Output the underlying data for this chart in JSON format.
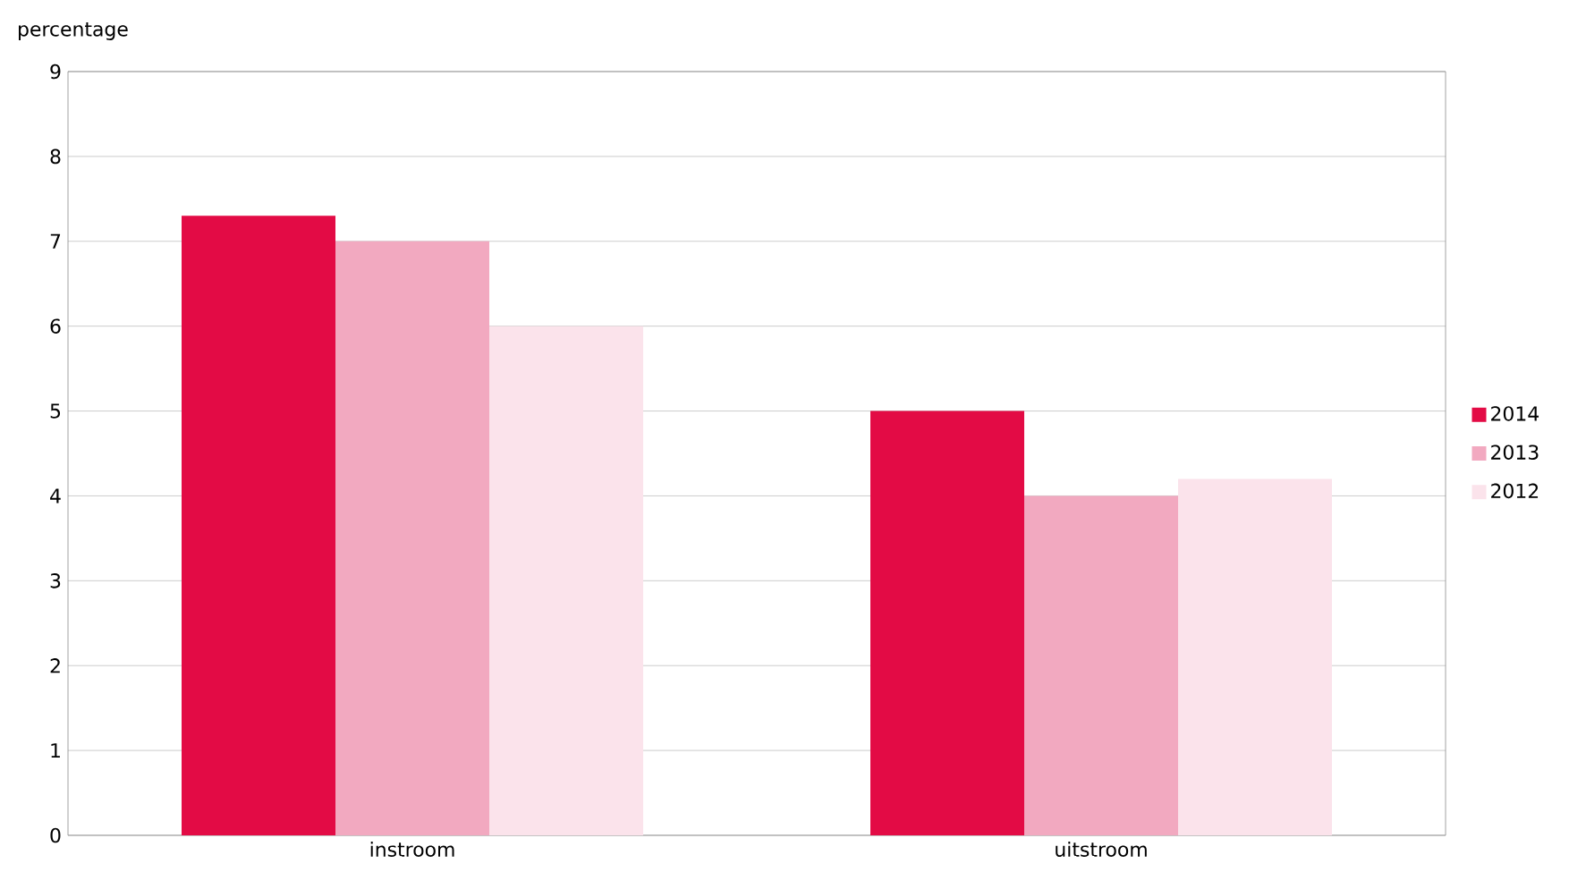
{
  "chart_data": {
    "type": "bar",
    "ylabel": "percentage",
    "categories": [
      "instroom",
      "uitstroom"
    ],
    "series": [
      {
        "name": "2014",
        "color": "#e30b45",
        "values": [
          7.3,
          5.0
        ]
      },
      {
        "name": "2013",
        "color": "#f2a9c0",
        "values": [
          7.0,
          4.0
        ]
      },
      {
        "name": "2012",
        "color": "#fbe3eb",
        "values": [
          6.0,
          4.2
        ]
      }
    ],
    "ylim": [
      0,
      9
    ],
    "yticks": [
      0,
      1,
      2,
      3,
      4,
      5,
      6,
      7,
      8,
      9
    ],
    "grid": "y",
    "legend": "right"
  }
}
